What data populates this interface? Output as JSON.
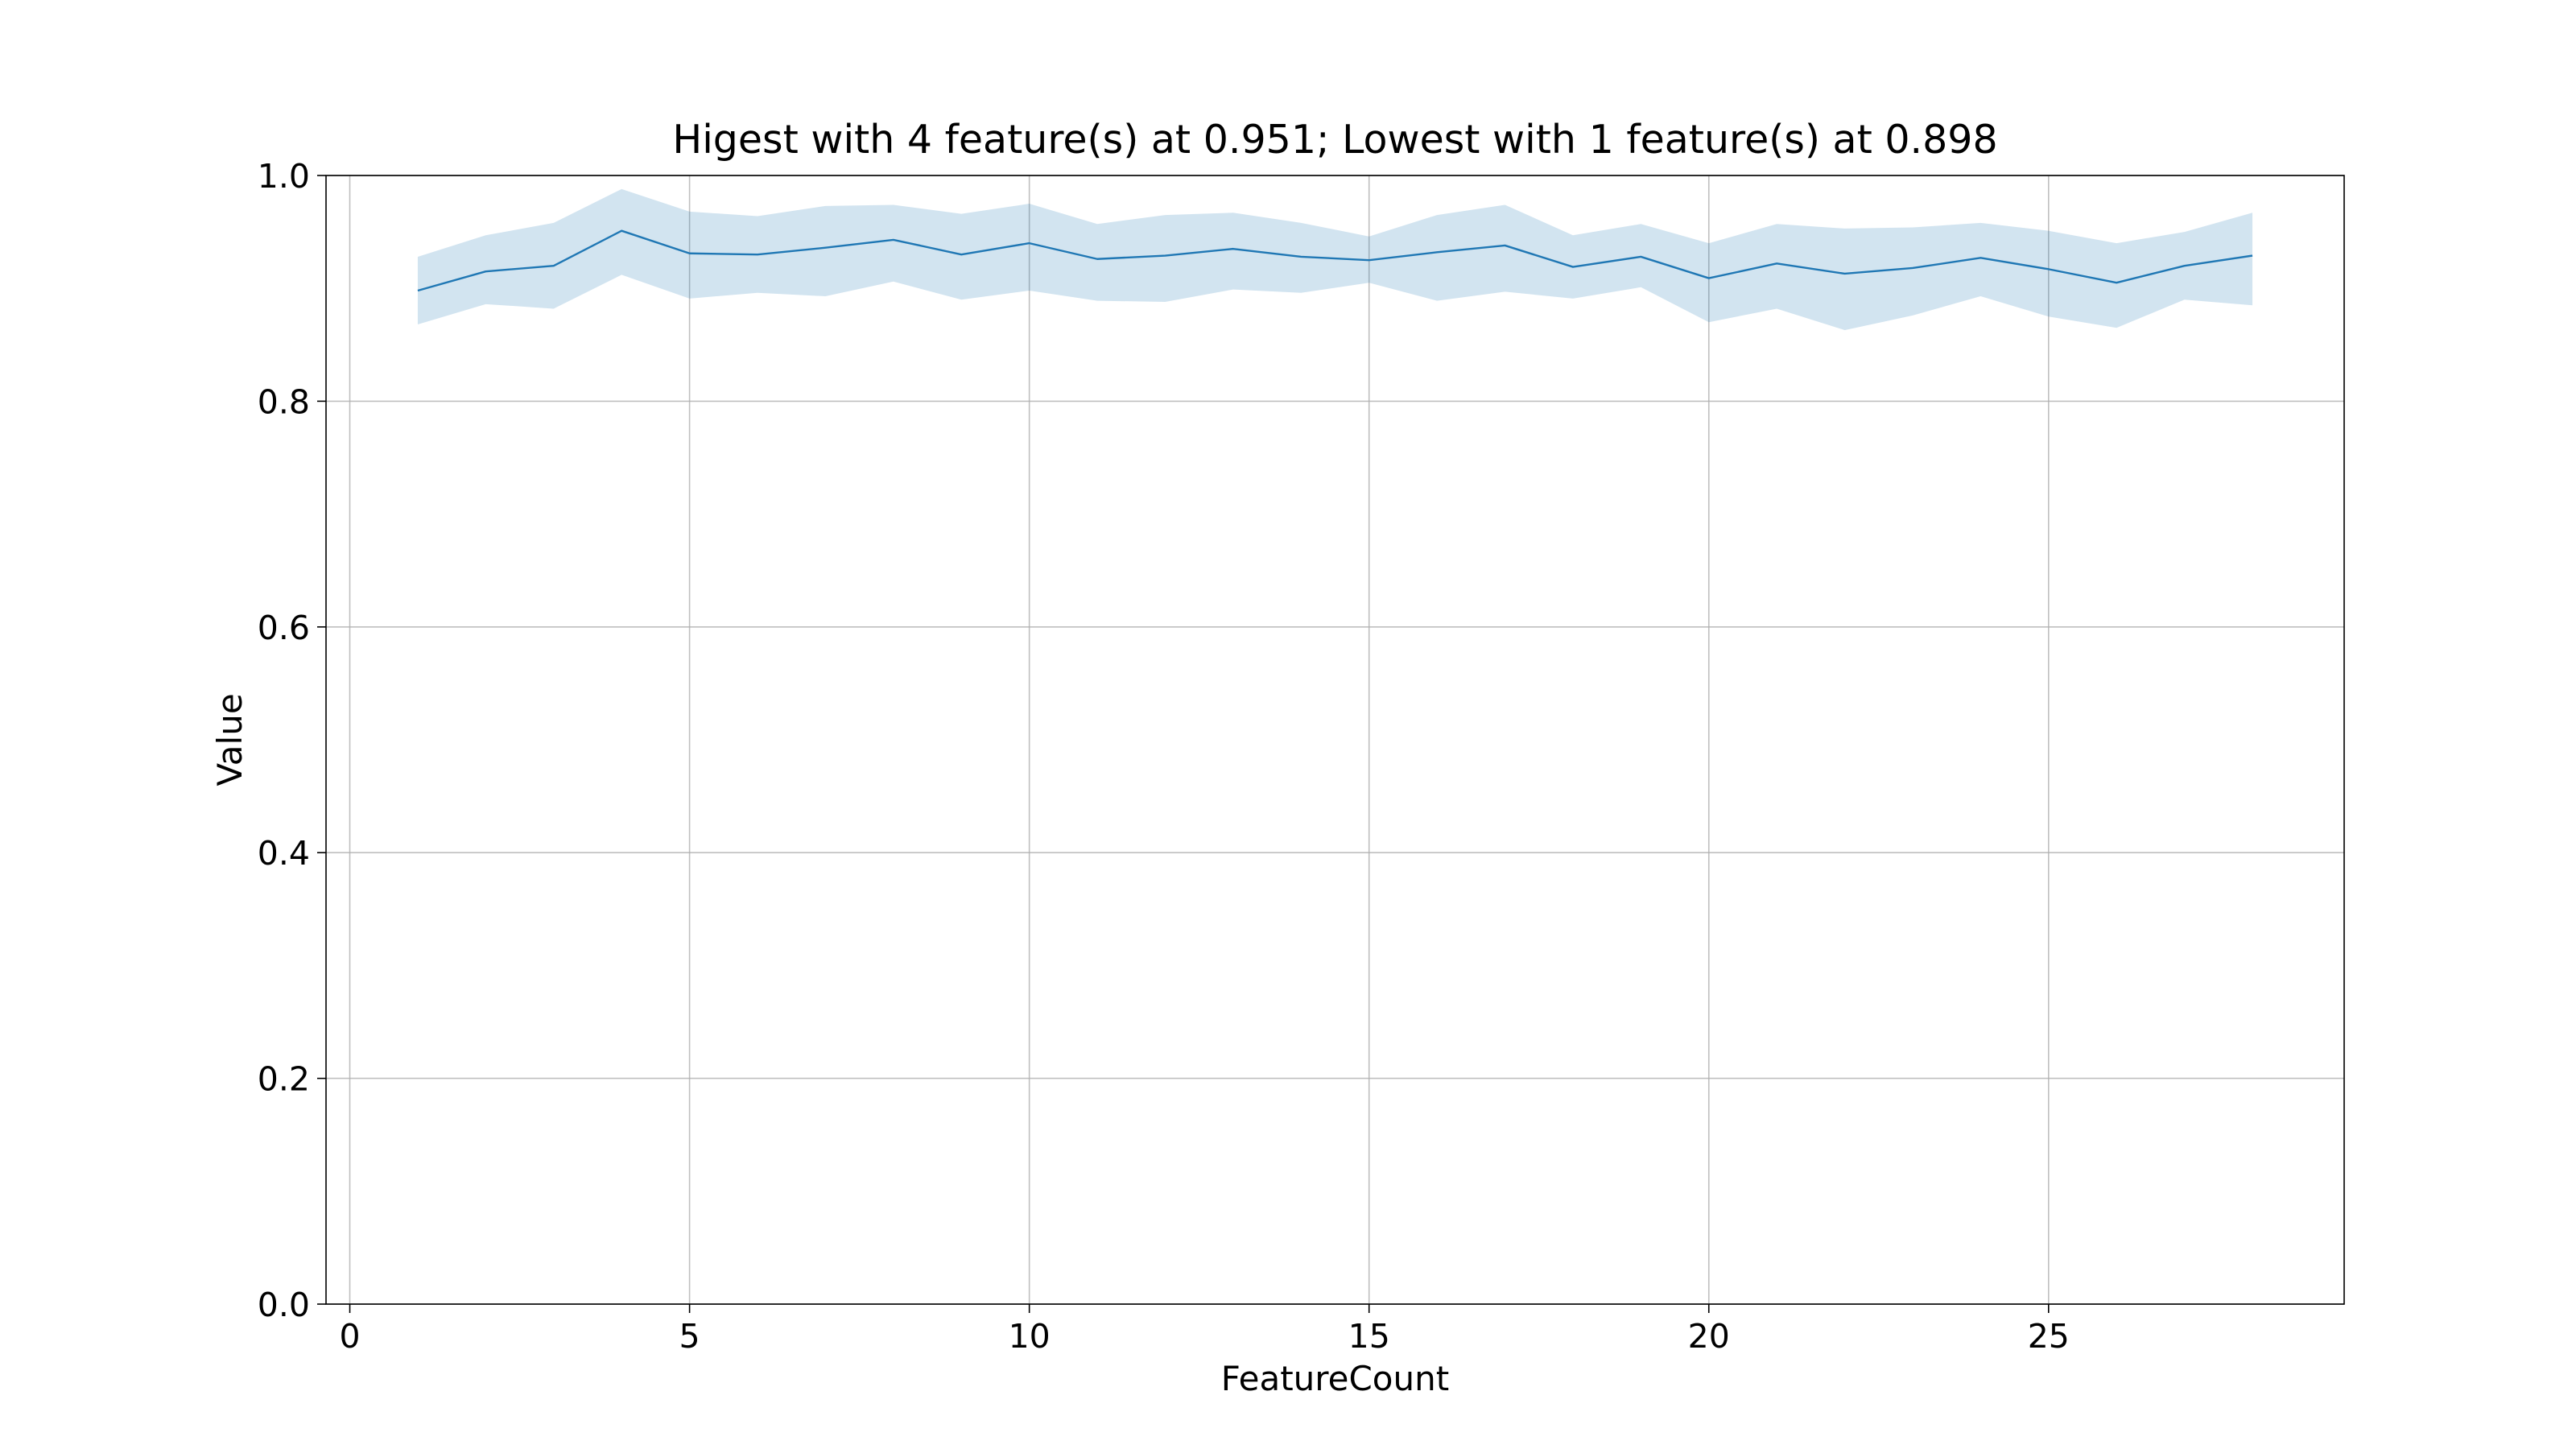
{
  "chart_data": {
    "type": "line",
    "title": "Higest with 4 feature(s) at 0.951; Lowest with 1 feature(s) at 0.898",
    "xlabel": "FeatureCount",
    "ylabel": "Value",
    "xlim": [
      -0.35,
      29.35
    ],
    "ylim": [
      0.0,
      1.0
    ],
    "xticks": [
      0,
      5,
      10,
      15,
      20,
      25
    ],
    "yticks": [
      0.0,
      0.2,
      0.4,
      0.6,
      0.8,
      1.0
    ],
    "xtick_labels": [
      "0",
      "5",
      "10",
      "15",
      "20",
      "25"
    ],
    "ytick_labels": [
      "0.0",
      "0.2",
      "0.4",
      "0.6",
      "0.8",
      "1.0"
    ],
    "grid": true,
    "color": "#1f77b4",
    "x": [
      1,
      2,
      3,
      4,
      5,
      6,
      7,
      8,
      9,
      10,
      11,
      12,
      13,
      14,
      15,
      16,
      17,
      18,
      19,
      20,
      21,
      22,
      23,
      24,
      25,
      26,
      27,
      28
    ],
    "series": [
      {
        "values": [
          0.898,
          0.915,
          0.92,
          0.951,
          0.931,
          0.93,
          0.936,
          0.943,
          0.93,
          0.94,
          0.926,
          0.929,
          0.935,
          0.928,
          0.925,
          0.932,
          0.938,
          0.919,
          0.928,
          0.909,
          0.922,
          0.913,
          0.918,
          0.927,
          0.917,
          0.905,
          0.92,
          0.929
        ],
        "upper": [
          0.928,
          0.947,
          0.958,
          0.988,
          0.968,
          0.964,
          0.973,
          0.974,
          0.966,
          0.975,
          0.957,
          0.965,
          0.967,
          0.958,
          0.946,
          0.965,
          0.974,
          0.947,
          0.957,
          0.94,
          0.957,
          0.953,
          0.954,
          0.958,
          0.951,
          0.94,
          0.95,
          0.967
        ],
        "lower": [
          0.868,
          0.886,
          0.882,
          0.912,
          0.891,
          0.896,
          0.893,
          0.906,
          0.89,
          0.898,
          0.889,
          0.888,
          0.899,
          0.896,
          0.905,
          0.889,
          0.897,
          0.891,
          0.901,
          0.87,
          0.882,
          0.863,
          0.876,
          0.893,
          0.875,
          0.865,
          0.89,
          0.885
        ]
      }
    ]
  }
}
